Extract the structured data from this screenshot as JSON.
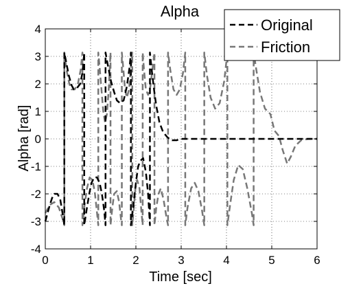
{
  "chart_data": {
    "type": "line",
    "title": "Alpha",
    "xlabel": "Time [sec]",
    "ylabel": "Alpha [rad]",
    "xlim": [
      0,
      6
    ],
    "ylim": [
      -4,
      4
    ],
    "xticks": [
      "0",
      "1",
      "2",
      "3",
      "4",
      "5",
      "6"
    ],
    "yticks": [
      "4",
      "3",
      "2",
      "1",
      "0",
      "-1",
      "-2",
      "-3",
      "-4"
    ],
    "grid": true,
    "legend_position": "top-right",
    "series": [
      {
        "name": "Original",
        "color": "#000000",
        "style": "dashed",
        "points": [
          [
            0.0,
            -3.0
          ],
          [
            0.05,
            -2.7
          ],
          [
            0.1,
            -2.4
          ],
          [
            0.15,
            -2.15
          ],
          [
            0.2,
            -2.0
          ],
          [
            0.27,
            -2.0
          ],
          [
            0.33,
            -2.2
          ],
          [
            0.38,
            -2.7
          ],
          [
            0.42,
            -3.14
          ],
          [
            0.42,
            3.14
          ],
          [
            0.46,
            2.8
          ],
          [
            0.52,
            2.3
          ],
          [
            0.58,
            1.95
          ],
          [
            0.63,
            1.8
          ],
          [
            0.7,
            1.85
          ],
          [
            0.77,
            2.0
          ],
          [
            0.82,
            2.4
          ],
          [
            0.86,
            3.14
          ],
          [
            0.86,
            -3.14
          ],
          [
            0.91,
            -2.6
          ],
          [
            0.97,
            -2.0
          ],
          [
            1.02,
            -1.6
          ],
          [
            1.08,
            -1.4
          ],
          [
            1.14,
            -1.4
          ],
          [
            1.2,
            -1.6
          ],
          [
            1.25,
            -2.0
          ],
          [
            1.3,
            -2.6
          ],
          [
            1.33,
            -3.14
          ],
          [
            1.33,
            3.14
          ],
          [
            1.39,
            2.6
          ],
          [
            1.45,
            2.1
          ],
          [
            1.52,
            1.7
          ],
          [
            1.58,
            1.4
          ],
          [
            1.65,
            1.3
          ],
          [
            1.73,
            1.4
          ],
          [
            1.8,
            1.9
          ],
          [
            1.86,
            2.6
          ],
          [
            1.89,
            3.14
          ],
          [
            1.89,
            -3.14
          ],
          [
            1.94,
            -2.5
          ],
          [
            2.0,
            -1.6
          ],
          [
            2.05,
            -1.0
          ],
          [
            2.1,
            -0.8
          ],
          [
            2.16,
            -0.7
          ],
          [
            2.22,
            -1.2
          ],
          [
            2.27,
            -2.0
          ],
          [
            2.31,
            -3.14
          ],
          [
            2.31,
            3.14
          ],
          [
            2.35,
            2.5
          ],
          [
            2.4,
            1.8
          ],
          [
            2.45,
            1.2
          ],
          [
            2.52,
            0.6
          ],
          [
            2.6,
            0.25
          ],
          [
            2.7,
            0.05
          ],
          [
            2.8,
            -0.05
          ],
          [
            2.9,
            -0.05
          ],
          [
            3.0,
            0.0
          ],
          [
            3.5,
            0.0
          ],
          [
            4.0,
            0.0
          ],
          [
            5.0,
            0.0
          ],
          [
            6.0,
            0.0
          ]
        ]
      },
      {
        "name": "Friction",
        "color": "#777777",
        "style": "dashed",
        "points": [
          [
            0.0,
            -2.7
          ],
          [
            0.1,
            -2.4
          ],
          [
            0.2,
            -2.3
          ],
          [
            0.3,
            -2.5
          ],
          [
            0.38,
            -2.9
          ],
          [
            0.42,
            -3.14
          ],
          [
            0.42,
            3.14
          ],
          [
            0.47,
            2.5
          ],
          [
            0.53,
            2.0
          ],
          [
            0.58,
            1.8
          ],
          [
            0.65,
            1.8
          ],
          [
            0.72,
            2.0
          ],
          [
            0.78,
            2.5
          ],
          [
            0.82,
            3.14
          ],
          [
            0.82,
            -3.14
          ],
          [
            0.86,
            -2.5
          ],
          [
            0.92,
            -1.8
          ],
          [
            0.98,
            -1.4
          ],
          [
            1.04,
            -1.5
          ],
          [
            1.09,
            -1.9
          ],
          [
            1.13,
            -2.5
          ],
          [
            1.17,
            -3.14
          ],
          [
            1.17,
            3.14
          ],
          [
            1.2,
            2.6
          ],
          [
            1.24,
            1.8
          ],
          [
            1.28,
            1.0
          ],
          [
            1.32,
            0.6
          ],
          [
            1.36,
            0.9
          ],
          [
            1.4,
            1.8
          ],
          [
            1.44,
            3.14
          ],
          [
            1.44,
            -3.14
          ],
          [
            1.48,
            -2.5
          ],
          [
            1.52,
            -2.0
          ],
          [
            1.58,
            -1.9
          ],
          [
            1.63,
            -2.3
          ],
          [
            1.67,
            -2.9
          ],
          [
            1.69,
            -3.14
          ],
          [
            1.69,
            3.14
          ],
          [
            1.72,
            2.6
          ],
          [
            1.76,
            1.8
          ],
          [
            1.8,
            1.5
          ],
          [
            1.85,
            1.8
          ],
          [
            1.89,
            2.6
          ],
          [
            1.92,
            3.14
          ],
          [
            1.92,
            -3.14
          ],
          [
            1.95,
            -2.6
          ],
          [
            1.99,
            -1.8
          ],
          [
            2.03,
            -1.5
          ],
          [
            2.08,
            -1.8
          ],
          [
            2.12,
            -2.6
          ],
          [
            2.15,
            -3.14
          ],
          [
            2.15,
            3.14
          ],
          [
            2.18,
            2.5
          ],
          [
            2.22,
            1.8
          ],
          [
            2.27,
            1.6
          ],
          [
            2.32,
            1.9
          ],
          [
            2.37,
            2.6
          ],
          [
            2.41,
            3.14
          ],
          [
            2.41,
            -3.14
          ],
          [
            2.45,
            -2.5
          ],
          [
            2.5,
            -2.0
          ],
          [
            2.55,
            -1.8
          ],
          [
            2.61,
            -2.2
          ],
          [
            2.67,
            -2.8
          ],
          [
            2.71,
            -3.14
          ],
          [
            2.71,
            3.14
          ],
          [
            2.76,
            2.5
          ],
          [
            2.83,
            1.8
          ],
          [
            2.9,
            1.6
          ],
          [
            2.97,
            1.8
          ],
          [
            3.04,
            2.4
          ],
          [
            3.09,
            3.14
          ],
          [
            3.09,
            -3.14
          ],
          [
            3.14,
            -2.5
          ],
          [
            3.22,
            -1.8
          ],
          [
            3.3,
            -1.6
          ],
          [
            3.38,
            -1.9
          ],
          [
            3.46,
            -2.6
          ],
          [
            3.51,
            -3.14
          ],
          [
            3.51,
            3.14
          ],
          [
            3.57,
            2.3
          ],
          [
            3.65,
            1.5
          ],
          [
            3.75,
            1.1
          ],
          [
            3.85,
            1.3
          ],
          [
            3.95,
            2.1
          ],
          [
            4.02,
            3.14
          ],
          [
            4.02,
            -3.14
          ],
          [
            4.08,
            -2.4
          ],
          [
            4.16,
            -1.5
          ],
          [
            4.26,
            -0.95
          ],
          [
            4.36,
            -1.1
          ],
          [
            4.46,
            -1.8
          ],
          [
            4.56,
            -2.7
          ],
          [
            4.6,
            -3.14
          ],
          [
            4.6,
            3.14
          ],
          [
            4.66,
            2.5
          ],
          [
            4.74,
            1.7
          ],
          [
            4.85,
            1.1
          ],
          [
            4.97,
            0.9
          ],
          [
            5.06,
            0.3
          ],
          [
            5.16,
            0.1
          ],
          [
            5.24,
            -0.4
          ],
          [
            5.34,
            -0.9
          ],
          [
            5.42,
            -0.65
          ],
          [
            5.52,
            -0.25
          ],
          [
            5.65,
            -0.05
          ],
          [
            5.8,
            0.0
          ],
          [
            6.0,
            0.0
          ]
        ]
      }
    ]
  }
}
